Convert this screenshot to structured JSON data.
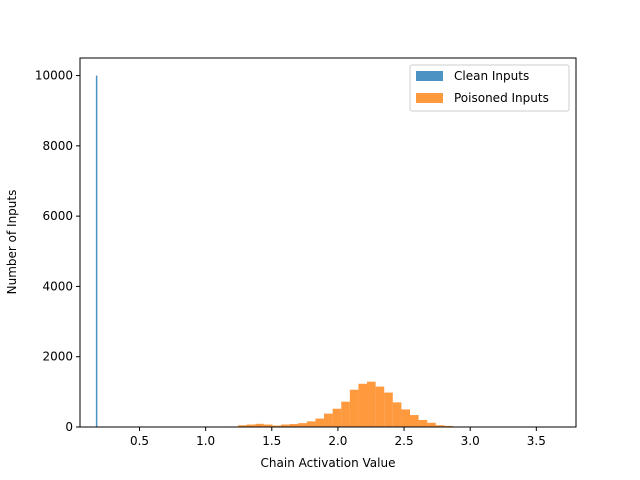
{
  "chart_data": {
    "type": "histogram",
    "xlabel": "Chain Activation Value",
    "ylabel": "Number of Inputs",
    "xlim": [
      0.05,
      3.8
    ],
    "ylim": [
      0,
      10500
    ],
    "x_ticks": [
      0.5,
      1.0,
      1.5,
      2.0,
      2.5,
      3.0,
      3.5
    ],
    "x_tick_labels": [
      "0.5",
      "1.0",
      "1.5",
      "2.0",
      "2.5",
      "3.0",
      "3.5"
    ],
    "y_ticks": [
      0,
      2000,
      4000,
      6000,
      8000,
      10000
    ],
    "y_tick_labels": [
      "0",
      "2000",
      "4000",
      "6000",
      "8000",
      "10000"
    ],
    "grid": false,
    "legend_position": "top-right",
    "series": [
      {
        "name": "Clean Inputs",
        "color": "#1f77b4",
        "opacity": 0.8,
        "bins": [
          {
            "x0": 0.17,
            "x1": 0.18,
            "count": 10000
          }
        ]
      },
      {
        "name": "Poisoned Inputs",
        "color": "#ff7f0e",
        "opacity": 0.8,
        "bins": [
          {
            "x0": 1.115,
            "x1": 1.18,
            "count": 5
          },
          {
            "x0": 1.18,
            "x1": 1.245,
            "count": 15
          },
          {
            "x0": 1.245,
            "x1": 1.31,
            "count": 50
          },
          {
            "x0": 1.31,
            "x1": 1.375,
            "count": 70
          },
          {
            "x0": 1.375,
            "x1": 1.44,
            "count": 90
          },
          {
            "x0": 1.44,
            "x1": 1.505,
            "count": 70
          },
          {
            "x0": 1.505,
            "x1": 1.57,
            "count": 40
          },
          {
            "x0": 1.57,
            "x1": 1.635,
            "count": 70
          },
          {
            "x0": 1.635,
            "x1": 1.7,
            "count": 85
          },
          {
            "x0": 1.7,
            "x1": 1.765,
            "count": 110
          },
          {
            "x0": 1.765,
            "x1": 1.83,
            "count": 160
          },
          {
            "x0": 1.83,
            "x1": 1.895,
            "count": 240
          },
          {
            "x0": 1.895,
            "x1": 1.96,
            "count": 380
          },
          {
            "x0": 1.96,
            "x1": 2.025,
            "count": 520
          },
          {
            "x0": 2.025,
            "x1": 2.09,
            "count": 720
          },
          {
            "x0": 2.09,
            "x1": 2.155,
            "count": 1060
          },
          {
            "x0": 2.155,
            "x1": 2.22,
            "count": 1230
          },
          {
            "x0": 2.22,
            "x1": 2.285,
            "count": 1290
          },
          {
            "x0": 2.285,
            "x1": 2.35,
            "count": 1150
          },
          {
            "x0": 2.35,
            "x1": 2.415,
            "count": 980
          },
          {
            "x0": 2.415,
            "x1": 2.48,
            "count": 700
          },
          {
            "x0": 2.48,
            "x1": 2.545,
            "count": 500
          },
          {
            "x0": 2.545,
            "x1": 2.61,
            "count": 340
          },
          {
            "x0": 2.61,
            "x1": 2.675,
            "count": 200
          },
          {
            "x0": 2.675,
            "x1": 2.74,
            "count": 120
          },
          {
            "x0": 2.74,
            "x1": 2.805,
            "count": 50
          },
          {
            "x0": 2.805,
            "x1": 2.87,
            "count": 30
          },
          {
            "x0": 2.87,
            "x1": 2.935,
            "count": 15
          },
          {
            "x0": 2.935,
            "x1": 3.0,
            "count": 10
          },
          {
            "x0": 3.0,
            "x1": 3.065,
            "count": 5
          },
          {
            "x0": 3.065,
            "x1": 3.13,
            "count": 3
          }
        ]
      }
    ]
  }
}
